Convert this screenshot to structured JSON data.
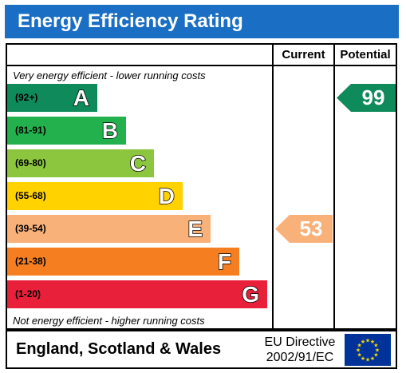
{
  "title": "Energy Efficiency Rating",
  "columns": {
    "current": "Current",
    "potential": "Potential"
  },
  "notes": {
    "top": "Very energy efficient - lower running costs",
    "bottom": "Not energy efficient - higher running costs"
  },
  "footer": {
    "region": "England, Scotland & Wales",
    "directive_line1": "EU Directive",
    "directive_line2": "2002/91/EC"
  },
  "colors": {
    "header": "#1a6fc4",
    "current_arrow": "#f9b17a",
    "potential_arrow": "#0f8a5a",
    "eu_blue": "#003399",
    "eu_star": "#ffdd00"
  },
  "chart_data": {
    "type": "bar",
    "categories": [
      "A",
      "B",
      "C",
      "D",
      "E",
      "F",
      "G"
    ],
    "ranges": [
      "(92+)",
      "(81-91)",
      "(69-80)",
      "(55-68)",
      "(39-54)",
      "(21-38)",
      "(1-20)"
    ],
    "band_colors": [
      "#0f8a5a",
      "#22b14c",
      "#8cc63f",
      "#ffd200",
      "#f9b17a",
      "#f57f20",
      "#e8203a"
    ],
    "current": {
      "value": 53,
      "band": "E"
    },
    "potential": {
      "value": 99,
      "band": "A"
    }
  },
  "icons": {
    "eu_flag": "eu-flag-icon"
  }
}
